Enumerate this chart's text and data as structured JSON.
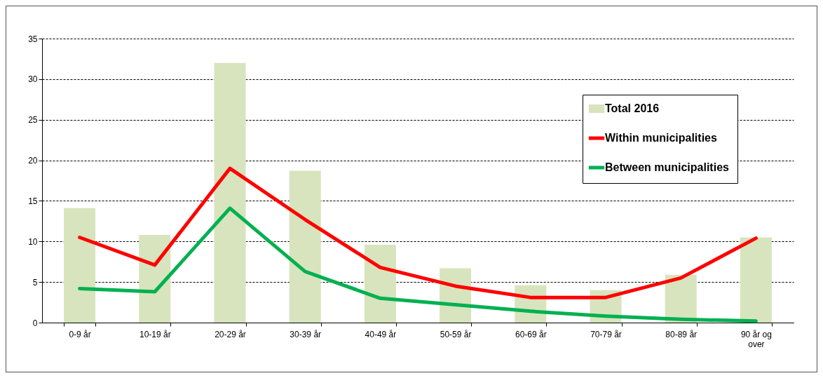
{
  "chart_data": {
    "type": "bar",
    "categories": [
      "0-9 år",
      "10-19 år",
      "20-29 år",
      "30-39 år",
      "40-49 år",
      "50-59 år",
      "60-69 år",
      "70-79 år",
      "80-89 år",
      "90 år og over"
    ],
    "series": [
      {
        "name": "Total 2016",
        "color": "#d7e4bd",
        "values": [
          14.1,
          10.8,
          32.0,
          18.7,
          9.6,
          6.7,
          4.6,
          4.0,
          5.9,
          10.5
        ]
      },
      {
        "name": "Within municipalities",
        "type": "line",
        "color": "#ff0000",
        "values": [
          10.5,
          7.1,
          19.0,
          12.7,
          6.8,
          4.5,
          3.1,
          3.1,
          5.5,
          10.4
        ]
      },
      {
        "name": "Between municipalities",
        "type": "line",
        "color": "#00b050",
        "values": [
          4.2,
          3.8,
          14.1,
          6.3,
          3.0,
          2.2,
          1.4,
          0.8,
          0.4,
          0.2
        ]
      }
    ],
    "ylim": [
      0,
      35
    ],
    "yticks": [
      0,
      5,
      10,
      15,
      20,
      25,
      30,
      35
    ],
    "grid": "y",
    "legend": "top right"
  }
}
